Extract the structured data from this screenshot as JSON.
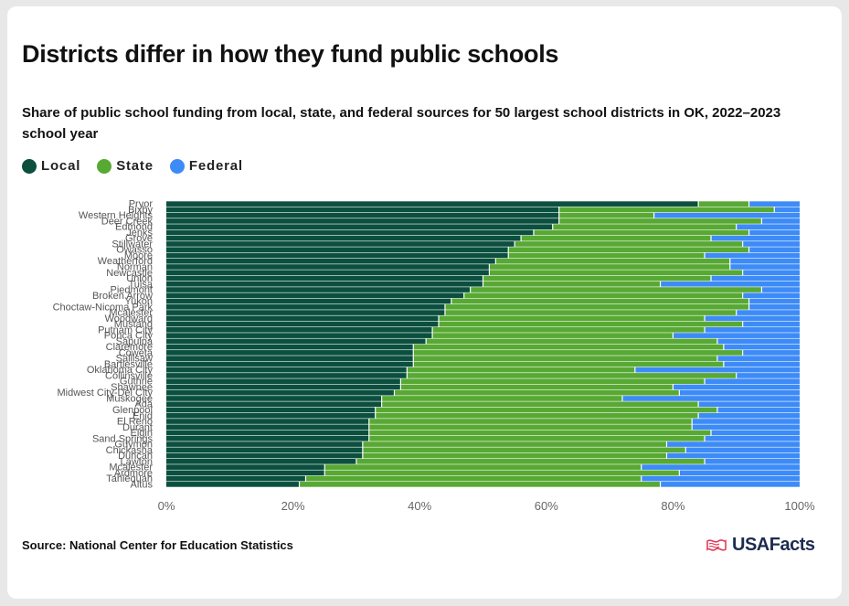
{
  "title": "Districts differ in how they fund public schools",
  "subtitle": "Share of public school funding from local, state, and federal sources for 50 largest school districts in OK, 2022–2023 school year",
  "source": "Source: National Center for Education Statistics",
  "brand": "USAFacts",
  "legend": [
    {
      "label": "Local",
      "color": "#0b4f3f"
    },
    {
      "label": "State",
      "color": "#58a934"
    },
    {
      "label": "Federal",
      "color": "#3d8bf7"
    }
  ],
  "chart_data": {
    "type": "bar",
    "orientation": "horizontal",
    "stacked": true,
    "categories": [
      "Pryor",
      "Bixby",
      "Western Heights",
      "Deer Creek",
      "Edmond",
      "Jenks",
      "Grove",
      "Stillwater",
      "Owasso",
      "Moore",
      "Weatherford",
      "Norman",
      "Newcastle",
      "Union",
      "Tulsa",
      "Piedmont",
      "Broken Arrow",
      "Yukon",
      "Choctaw-Nicoma Park",
      "Mcalester",
      "Woodward",
      "Mustang",
      "Putnam City",
      "Ponca City",
      "Sapulpa",
      "Claremore",
      "Coweta",
      "Sallisaw",
      "Bartlesville",
      "Oklahoma City",
      "Collinsville",
      "Guthrie",
      "Shawnee",
      "Midwest City-Del City",
      "Muskogee",
      "Ada",
      "Glenpool",
      "Enid",
      "El Reno",
      "Durant",
      "Elgin",
      "Sand Springs",
      "Guymon",
      "Chickasha",
      "Duncan",
      "Lawton",
      "Mcalester",
      "Ardmore",
      "Tahlequah",
      "Altus"
    ],
    "series": [
      {
        "name": "Local",
        "color": "#0b4f3f",
        "values": [
          84,
          62,
          62,
          62,
          61,
          58,
          56,
          55,
          54,
          54,
          52,
          51,
          51,
          50,
          50,
          48,
          47,
          45,
          44,
          44,
          43,
          43,
          42,
          42,
          41,
          39,
          39,
          39,
          39,
          38,
          38,
          37,
          37,
          36,
          34,
          34,
          33,
          33,
          32,
          32,
          32,
          32,
          31,
          31,
          31,
          30,
          25,
          25,
          22,
          21
        ]
      },
      {
        "name": "State",
        "color": "#58a934",
        "values": [
          8,
          34,
          15,
          32,
          29,
          34,
          30,
          36,
          38,
          31,
          37,
          38,
          40,
          36,
          28,
          46,
          44,
          47,
          48,
          46,
          42,
          48,
          43,
          38,
          46,
          49,
          52,
          48,
          49,
          36,
          52,
          48,
          43,
          45,
          38,
          50,
          54,
          51,
          51,
          51,
          54,
          53,
          48,
          51,
          48,
          55,
          50,
          56,
          53,
          57
        ]
      },
      {
        "name": "Federal",
        "color": "#3d8bf7",
        "values": [
          8,
          4,
          23,
          6,
          10,
          8,
          14,
          9,
          8,
          15,
          11,
          11,
          9,
          14,
          22,
          6,
          9,
          8,
          8,
          10,
          15,
          9,
          15,
          20,
          13,
          12,
          9,
          13,
          12,
          26,
          10,
          15,
          20,
          19,
          28,
          16,
          13,
          16,
          17,
          17,
          14,
          15,
          21,
          18,
          21,
          15,
          25,
          19,
          25,
          22
        ]
      }
    ],
    "xlim": [
      0,
      100
    ],
    "xticks": [
      "0%",
      "20%",
      "40%",
      "60%",
      "80%",
      "100%"
    ],
    "grid": false,
    "legend_position": "top-left"
  }
}
